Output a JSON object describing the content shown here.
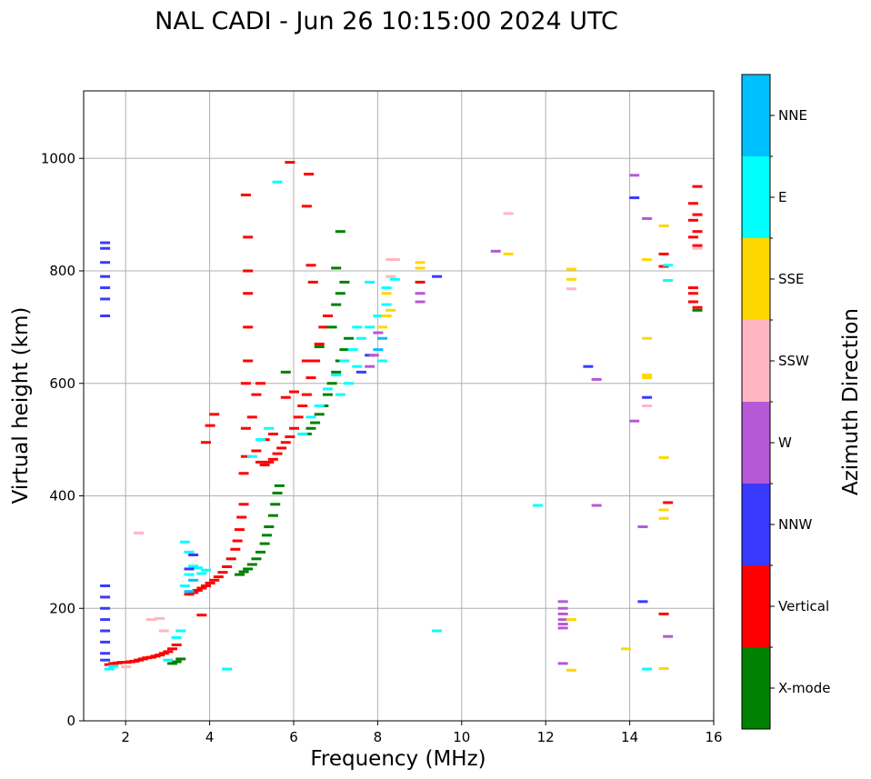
{
  "chart_data": {
    "type": "scatter",
    "title": "NAL CADI - Jun 26 10:15:00 2024 UTC",
    "xlabel": "Frequency (MHz)",
    "ylabel": "Virtual height (km)",
    "xlim": [
      1,
      16
    ],
    "ylim": [
      0,
      1120
    ],
    "xticks": [
      2,
      4,
      6,
      8,
      10,
      12,
      14,
      16
    ],
    "yticks": [
      0,
      200,
      400,
      600,
      800,
      1000
    ],
    "grid": true,
    "colorbar": {
      "label": "Azimuth Direction",
      "categories": [
        {
          "name": "X-mode",
          "color": "#008000"
        },
        {
          "name": "Vertical",
          "color": "#ff0000"
        },
        {
          "name": "NNW",
          "color": "#3a3aff"
        },
        {
          "name": "W",
          "color": "#b559d6"
        },
        {
          "name": "SSW",
          "color": "#ffb6c1"
        },
        {
          "name": "SSE",
          "color": "#ffd700"
        },
        {
          "name": "E",
          "color": "#00ffff"
        },
        {
          "name": "NNE",
          "color": "#00bfff"
        }
      ]
    },
    "series": [
      {
        "name": "Vertical",
        "points": [
          [
            1.6,
            100
          ],
          [
            1.7,
            102
          ],
          [
            1.8,
            103
          ],
          [
            1.9,
            104
          ],
          [
            2.0,
            104
          ],
          [
            2.1,
            105
          ],
          [
            2.2,
            106
          ],
          [
            2.3,
            108
          ],
          [
            2.4,
            110
          ],
          [
            2.5,
            112
          ],
          [
            2.6,
            113
          ],
          [
            2.7,
            115
          ],
          [
            2.8,
            117
          ],
          [
            2.9,
            120
          ],
          [
            3.0,
            123
          ],
          [
            3.1,
            128
          ],
          [
            3.2,
            135
          ],
          [
            3.5,
            225
          ],
          [
            3.6,
            228
          ],
          [
            3.7,
            232
          ],
          [
            3.8,
            236
          ],
          [
            3.9,
            240
          ],
          [
            4.0,
            245
          ],
          [
            4.1,
            250
          ],
          [
            4.2,
            256
          ],
          [
            4.3,
            264
          ],
          [
            4.4,
            274
          ],
          [
            4.5,
            288
          ],
          [
            4.6,
            305
          ],
          [
            4.65,
            320
          ],
          [
            4.7,
            340
          ],
          [
            4.75,
            362
          ],
          [
            4.8,
            385
          ],
          [
            4.0,
            525
          ],
          [
            4.1,
            545
          ],
          [
            3.9,
            495
          ],
          [
            3.8,
            188
          ],
          [
            4.8,
            440
          ],
          [
            4.85,
            470
          ],
          [
            4.85,
            520
          ],
          [
            4.85,
            600
          ],
          [
            4.9,
            640
          ],
          [
            4.9,
            700
          ],
          [
            4.9,
            760
          ],
          [
            4.9,
            800
          ],
          [
            4.9,
            860
          ],
          [
            4.85,
            935
          ],
          [
            5.1,
            480
          ],
          [
            5.2,
            460
          ],
          [
            5.3,
            455
          ],
          [
            5.4,
            460
          ],
          [
            5.5,
            465
          ],
          [
            5.6,
            475
          ],
          [
            5.7,
            485
          ],
          [
            5.8,
            495
          ],
          [
            5.9,
            505
          ],
          [
            6.0,
            520
          ],
          [
            6.1,
            540
          ],
          [
            6.2,
            560
          ],
          [
            6.3,
            580
          ],
          [
            6.4,
            610
          ],
          [
            6.5,
            640
          ],
          [
            6.6,
            670
          ],
          [
            6.7,
            700
          ],
          [
            6.8,
            720
          ],
          [
            5.0,
            540
          ],
          [
            5.1,
            580
          ],
          [
            5.2,
            600
          ],
          [
            5.3,
            500
          ],
          [
            5.5,
            510
          ],
          [
            5.8,
            575
          ],
          [
            6.0,
            585
          ],
          [
            6.3,
            640
          ],
          [
            6.4,
            810
          ],
          [
            6.45,
            780
          ],
          [
            6.3,
            915
          ],
          [
            6.35,
            972
          ],
          [
            5.9,
            993
          ],
          [
            15.5,
            920
          ],
          [
            15.5,
            890
          ],
          [
            15.5,
            860
          ],
          [
            15.6,
            950
          ],
          [
            15.6,
            900
          ],
          [
            15.6,
            870
          ],
          [
            15.6,
            845
          ],
          [
            15.5,
            770
          ],
          [
            15.5,
            760
          ],
          [
            15.5,
            745
          ],
          [
            15.6,
            735
          ],
          [
            14.8,
            830
          ],
          [
            14.8,
            808
          ],
          [
            14.9,
            388
          ],
          [
            14.8,
            190
          ],
          [
            9.0,
            780
          ]
        ]
      },
      {
        "name": "X-mode",
        "points": [
          [
            3.2,
            105
          ],
          [
            3.3,
            110
          ],
          [
            3.1,
            102
          ],
          [
            4.7,
            260
          ],
          [
            4.8,
            265
          ],
          [
            4.9,
            270
          ],
          [
            5.0,
            278
          ],
          [
            5.1,
            288
          ],
          [
            5.2,
            300
          ],
          [
            5.3,
            315
          ],
          [
            5.35,
            330
          ],
          [
            5.4,
            345
          ],
          [
            5.5,
            365
          ],
          [
            5.55,
            385
          ],
          [
            5.6,
            405
          ],
          [
            5.65,
            418
          ],
          [
            6.3,
            510
          ],
          [
            6.4,
            520
          ],
          [
            6.5,
            530
          ],
          [
            6.6,
            545
          ],
          [
            6.7,
            560
          ],
          [
            6.8,
            580
          ],
          [
            6.9,
            600
          ],
          [
            7.0,
            620
          ],
          [
            7.1,
            640
          ],
          [
            7.2,
            660
          ],
          [
            7.3,
            680
          ],
          [
            7.0,
            740
          ],
          [
            7.1,
            760
          ],
          [
            7.2,
            780
          ],
          [
            7.0,
            805
          ],
          [
            7.1,
            870
          ],
          [
            6.6,
            665
          ],
          [
            6.9,
            700
          ],
          [
            5.8,
            620
          ],
          [
            15.6,
            730
          ]
        ]
      },
      {
        "name": "E",
        "points": [
          [
            3.4,
            240
          ],
          [
            3.5,
            260
          ],
          [
            3.6,
            275
          ],
          [
            3.5,
            300
          ],
          [
            3.4,
            318
          ],
          [
            3.7,
            272
          ],
          [
            3.8,
            262
          ],
          [
            3.9,
            268
          ],
          [
            1.6,
            92
          ],
          [
            1.7,
            97
          ],
          [
            3.0,
            108
          ],
          [
            3.2,
            148
          ],
          [
            3.3,
            160
          ],
          [
            4.4,
            92
          ],
          [
            5.2,
            500
          ],
          [
            5.4,
            520
          ],
          [
            5.0,
            470
          ],
          [
            6.2,
            510
          ],
          [
            6.4,
            540
          ],
          [
            6.6,
            560
          ],
          [
            6.8,
            590
          ],
          [
            7.0,
            615
          ],
          [
            7.2,
            640
          ],
          [
            7.4,
            660
          ],
          [
            7.6,
            680
          ],
          [
            7.8,
            700
          ],
          [
            8.0,
            720
          ],
          [
            8.2,
            740
          ],
          [
            7.1,
            580
          ],
          [
            7.3,
            600
          ],
          [
            7.5,
            630
          ],
          [
            7.5,
            700
          ],
          [
            7.8,
            780
          ],
          [
            8.4,
            785
          ],
          [
            8.2,
            770
          ],
          [
            8.1,
            640
          ],
          [
            5.6,
            958
          ],
          [
            9.4,
            160
          ],
          [
            11.8,
            383
          ],
          [
            14.4,
            92
          ],
          [
            14.9,
            783
          ],
          [
            14.9,
            810
          ]
        ]
      },
      {
        "name": "NNW",
        "points": [
          [
            1.5,
            850
          ],
          [
            1.5,
            840
          ],
          [
            1.5,
            815
          ],
          [
            1.5,
            790
          ],
          [
            1.5,
            770
          ],
          [
            1.5,
            750
          ],
          [
            1.5,
            720
          ],
          [
            1.5,
            240
          ],
          [
            1.5,
            220
          ],
          [
            1.5,
            200
          ],
          [
            1.5,
            180
          ],
          [
            1.5,
            160
          ],
          [
            1.5,
            140
          ],
          [
            1.5,
            120
          ],
          [
            1.5,
            108
          ],
          [
            3.5,
            270
          ],
          [
            3.6,
            295
          ],
          [
            7.6,
            620
          ],
          [
            7.8,
            650
          ],
          [
            9.4,
            790
          ],
          [
            13.0,
            630
          ],
          [
            14.1,
            930
          ],
          [
            14.3,
            212
          ],
          [
            14.4,
            575
          ]
        ]
      },
      {
        "name": "W",
        "points": [
          [
            8.0,
            690
          ],
          [
            7.9,
            650
          ],
          [
            7.8,
            630
          ],
          [
            9.0,
            745
          ],
          [
            9.0,
            760
          ],
          [
            10.8,
            835
          ],
          [
            13.2,
            607
          ],
          [
            13.2,
            383
          ],
          [
            14.1,
            970
          ],
          [
            14.1,
            533
          ],
          [
            14.3,
            345
          ],
          [
            14.4,
            893
          ],
          [
            14.9,
            150
          ],
          [
            12.4,
            165
          ],
          [
            12.4,
            172
          ],
          [
            12.4,
            180
          ],
          [
            12.4,
            190
          ],
          [
            12.4,
            200
          ],
          [
            12.4,
            212
          ],
          [
            12.4,
            102
          ]
        ]
      },
      {
        "name": "SSW",
        "points": [
          [
            2.3,
            334
          ],
          [
            2.0,
            96
          ],
          [
            2.6,
            180
          ],
          [
            2.8,
            182
          ],
          [
            2.9,
            160
          ],
          [
            8.3,
            820
          ],
          [
            8.4,
            820
          ],
          [
            8.3,
            790
          ],
          [
            11.1,
            902
          ],
          [
            12.6,
            768
          ],
          [
            14.4,
            560
          ],
          [
            15.6,
            840
          ]
        ]
      },
      {
        "name": "SSE",
        "points": [
          [
            8.1,
            700
          ],
          [
            8.2,
            720
          ],
          [
            8.3,
            730
          ],
          [
            8.2,
            760
          ],
          [
            9.0,
            805
          ],
          [
            9.0,
            815
          ],
          [
            11.1,
            830
          ],
          [
            12.6,
            803
          ],
          [
            12.6,
            785
          ],
          [
            12.6,
            180
          ],
          [
            12.6,
            90
          ],
          [
            13.9,
            128
          ],
          [
            14.4,
            820
          ],
          [
            14.4,
            680
          ],
          [
            14.4,
            615
          ],
          [
            14.4,
            610
          ],
          [
            14.8,
            880
          ],
          [
            14.8,
            468
          ],
          [
            14.8,
            375
          ],
          [
            14.8,
            360
          ],
          [
            14.8,
            93
          ]
        ]
      },
      {
        "name": "NNE",
        "points": [
          [
            3.5,
            230
          ],
          [
            3.6,
            250
          ],
          [
            8.0,
            660
          ],
          [
            8.1,
            680
          ]
        ]
      }
    ]
  }
}
